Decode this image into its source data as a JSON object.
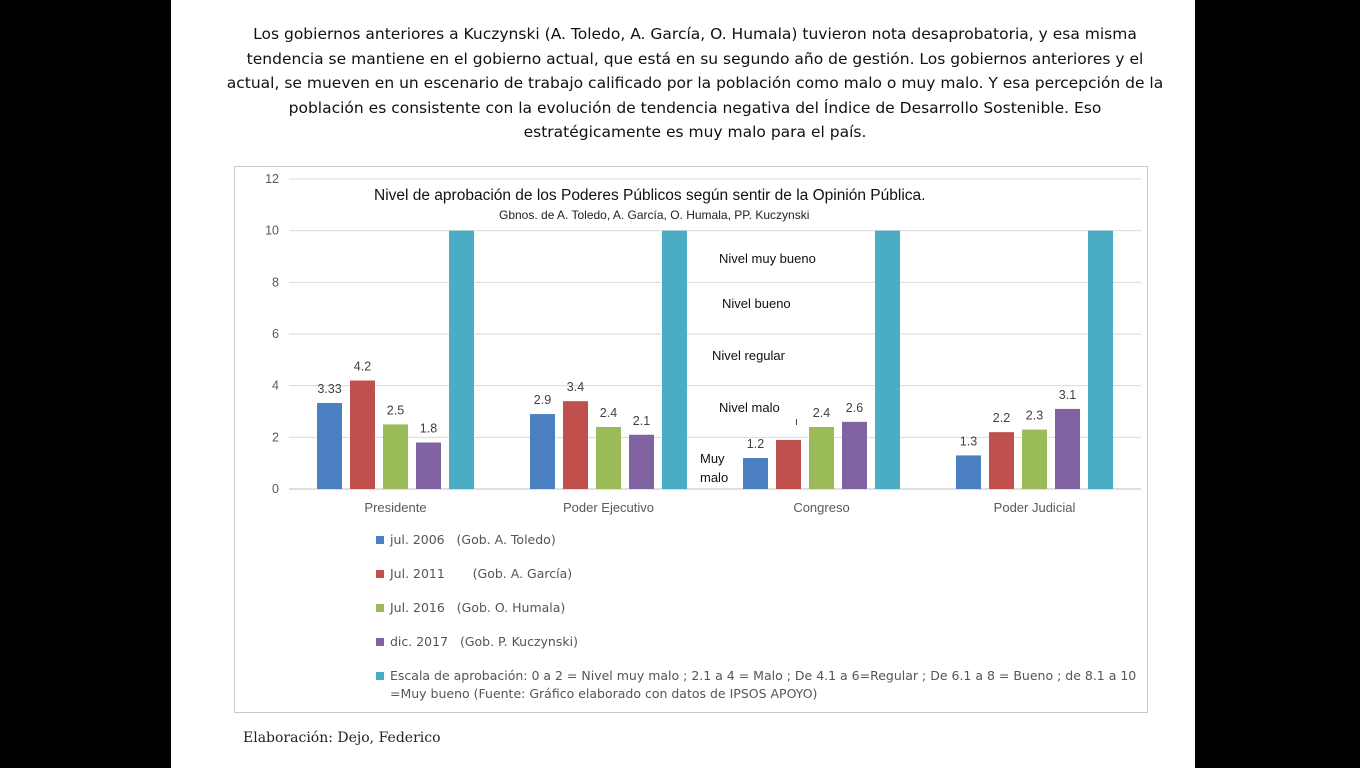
{
  "intro_text": "Los gobiernos anteriores a Kuczynski (A. Toledo, A. García, O. Humala) tuvieron nota desaprobatoria, y esa misma tendencia se mantiene en el gobierno actual, que está en su segundo año de gestión. Los gobiernos anteriores y el actual, se mueven en un escenario de trabajo calificado por la población como malo o muy malo. Y esa percepción de la población es consistente con la evolución de tendencia negativa del Índice de Desarrollo Sostenible. Eso estratégicamente es muy malo para el país.",
  "credit": "Elaboración: Dejo, Federico",
  "chart_data": {
    "type": "bar",
    "title": "Nivel de aprobación de los Poderes Públicos  según sentir de la Opinión Pública.",
    "subtitle": "Gbnos. de A. Toledo, A. García, O. Humala, PP. Kuczynski",
    "categories": [
      "Presidente",
      "Poder Ejecutivo",
      "Congreso",
      "Poder Judicial"
    ],
    "ylim": [
      0,
      12
    ],
    "yticks": [
      0,
      2,
      4,
      6,
      8,
      10,
      12
    ],
    "grid": true,
    "legend_position": "bottom",
    "series": [
      {
        "name": "jul. 2006   (Gob. A. Toledo)",
        "color": "#4a7fc1",
        "values": [
          3.33,
          2.9,
          1.2,
          1.3
        ],
        "labels": [
          "3.33",
          "2.9",
          "1.2",
          "1.3"
        ]
      },
      {
        "name": "Jul. 2011       (Gob. A. García)",
        "color": "#c0504d",
        "values": [
          4.2,
          3.4,
          1.9,
          2.2
        ],
        "labels": [
          "4.2",
          "3.4",
          "",
          "2.2"
        ]
      },
      {
        "name": "Jul. 2016   (Gob. O. Humala)",
        "color": "#9bbb59",
        "values": [
          2.5,
          2.4,
          2.4,
          2.3
        ],
        "labels": [
          "2.5",
          "2.4",
          "2.4",
          "2.3"
        ]
      },
      {
        "name": "dic. 2017   (Gob. P. Kuczynski)",
        "color": "#8064a2",
        "values": [
          1.8,
          2.1,
          2.6,
          3.1
        ],
        "labels": [
          "1.8",
          "2.1",
          "2.6",
          "3.1"
        ]
      },
      {
        "name": "Escala de aprobación: 0 a 2 = Nivel muy malo ; 2.1 a 4 = Malo ; De 4.1 a 6=Regular ; De 6.1 a 8 = Bueno ; de 8.1 a 10 =Muy bueno (Fuente: Gráfico elaborado con datos de IPSOS APOYO)",
        "color": "#4bacc6",
        "values": [
          10,
          10,
          10,
          10
        ],
        "labels": [
          "",
          "",
          "",
          ""
        ]
      }
    ],
    "annotations": [
      "Nivel muy bueno",
      "Nivel bueno",
      "Nivel regular",
      "Nivel malo",
      "Muy malo"
    ],
    "stray_label": "ı"
  }
}
